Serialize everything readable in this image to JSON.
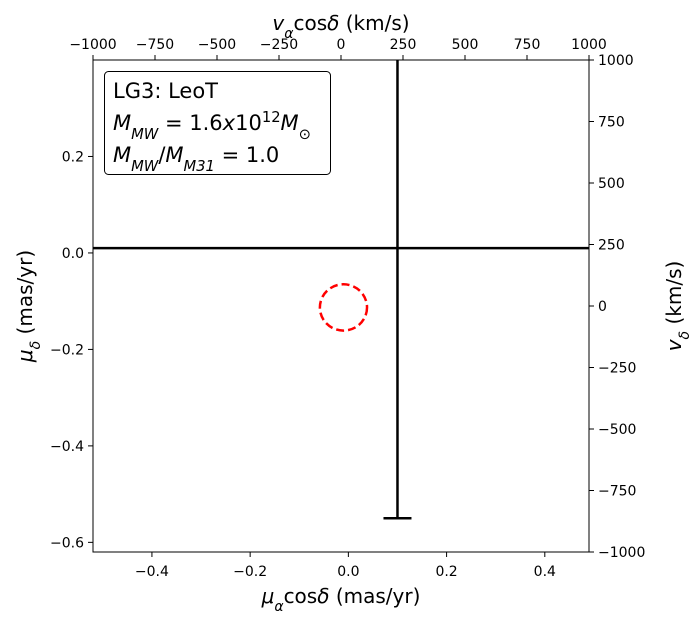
{
  "chart_data": {
    "type": "errorbar",
    "x_label": [
      {
        "t": "μ",
        "s": "i"
      },
      {
        "t": "α",
        "s": "sub-i"
      },
      {
        "t": "cos",
        "s": ""
      },
      {
        "t": "δ",
        "s": "i"
      },
      {
        "t": " (mas/yr)",
        "s": ""
      }
    ],
    "y_label": [
      {
        "t": "μ",
        "s": "i"
      },
      {
        "t": "δ",
        "s": "sub-i"
      },
      {
        "t": " (mas/yr)",
        "s": ""
      }
    ],
    "x2_label": [
      {
        "t": "v",
        "s": "i"
      },
      {
        "t": "α",
        "s": "sub-i"
      },
      {
        "t": "cos",
        "s": ""
      },
      {
        "t": "δ",
        "s": "i"
      },
      {
        "t": " (km/s)",
        "s": ""
      }
    ],
    "y2_label": [
      {
        "t": "v",
        "s": "i"
      },
      {
        "t": "δ",
        "s": "sub-i"
      },
      {
        "t": " (km/s)",
        "s": ""
      }
    ],
    "xlim": [
      -0.52,
      0.49
    ],
    "ylim": [
      -0.62,
      0.4
    ],
    "x2lim": [
      -1000,
      1000
    ],
    "y2lim": [
      -1000,
      1000
    ],
    "xticks": [
      {
        "value": -0.4,
        "label": "−0.4"
      },
      {
        "value": -0.2,
        "label": "−0.2"
      },
      {
        "value": 0,
        "label": "0.0"
      },
      0.2,
      0.4
    ],
    "yticks": [
      {
        "value": -0.6,
        "label": "−0.6"
      },
      {
        "value": -0.4,
        "label": "−0.4"
      },
      {
        "value": -0.2,
        "label": "−0.2"
      },
      {
        "value": 0,
        "label": "0.0"
      },
      0.2
    ],
    "x2ticks": [
      {
        "value": -1000,
        "label": "−1000"
      },
      {
        "value": -750,
        "label": "−750"
      },
      {
        "value": -500,
        "label": "−500"
      },
      {
        "value": -250,
        "label": "−250"
      },
      0,
      250,
      500,
      750,
      1000
    ],
    "y2ticks": [
      {
        "value": -1000,
        "label": "−1000"
      },
      {
        "value": -750,
        "label": "−750"
      },
      {
        "value": -500,
        "label": "−500"
      },
      {
        "value": -250,
        "label": "−250"
      },
      0,
      250,
      500,
      750,
      1000
    ],
    "errorbar": {
      "x": 0.1,
      "y": 0.01,
      "xerr": 0.7,
      "yerr": [
        0.56,
        0.6
      ],
      "color": "#000000"
    },
    "circle": {
      "x": -0.01,
      "y": -0.113,
      "radius": 0.048,
      "color": "#ff0000"
    },
    "annotation": [
      [
        {
          "t": "LG3: LeoT",
          "s": ""
        }
      ],
      [
        {
          "t": "M",
          "s": "i"
        },
        {
          "t": "MW",
          "s": "sub-i"
        },
        {
          "t": " = 1.6",
          "s": ""
        },
        {
          "t": "x",
          "s": "i"
        },
        {
          "t": "10",
          "s": ""
        },
        {
          "t": "12",
          "s": "sup"
        },
        {
          "t": "M",
          "s": "i"
        },
        {
          "t": "⊙",
          "s": "sub"
        }
      ],
      [
        {
          "t": "M",
          "s": "i"
        },
        {
          "t": "MW",
          "s": "sub-i"
        },
        {
          "t": "/",
          "s": ""
        },
        {
          "t": "M",
          "s": "i"
        },
        {
          "t": "M31",
          "s": "sub-i"
        },
        {
          "t": " = 1.0",
          "s": ""
        }
      ]
    ]
  }
}
